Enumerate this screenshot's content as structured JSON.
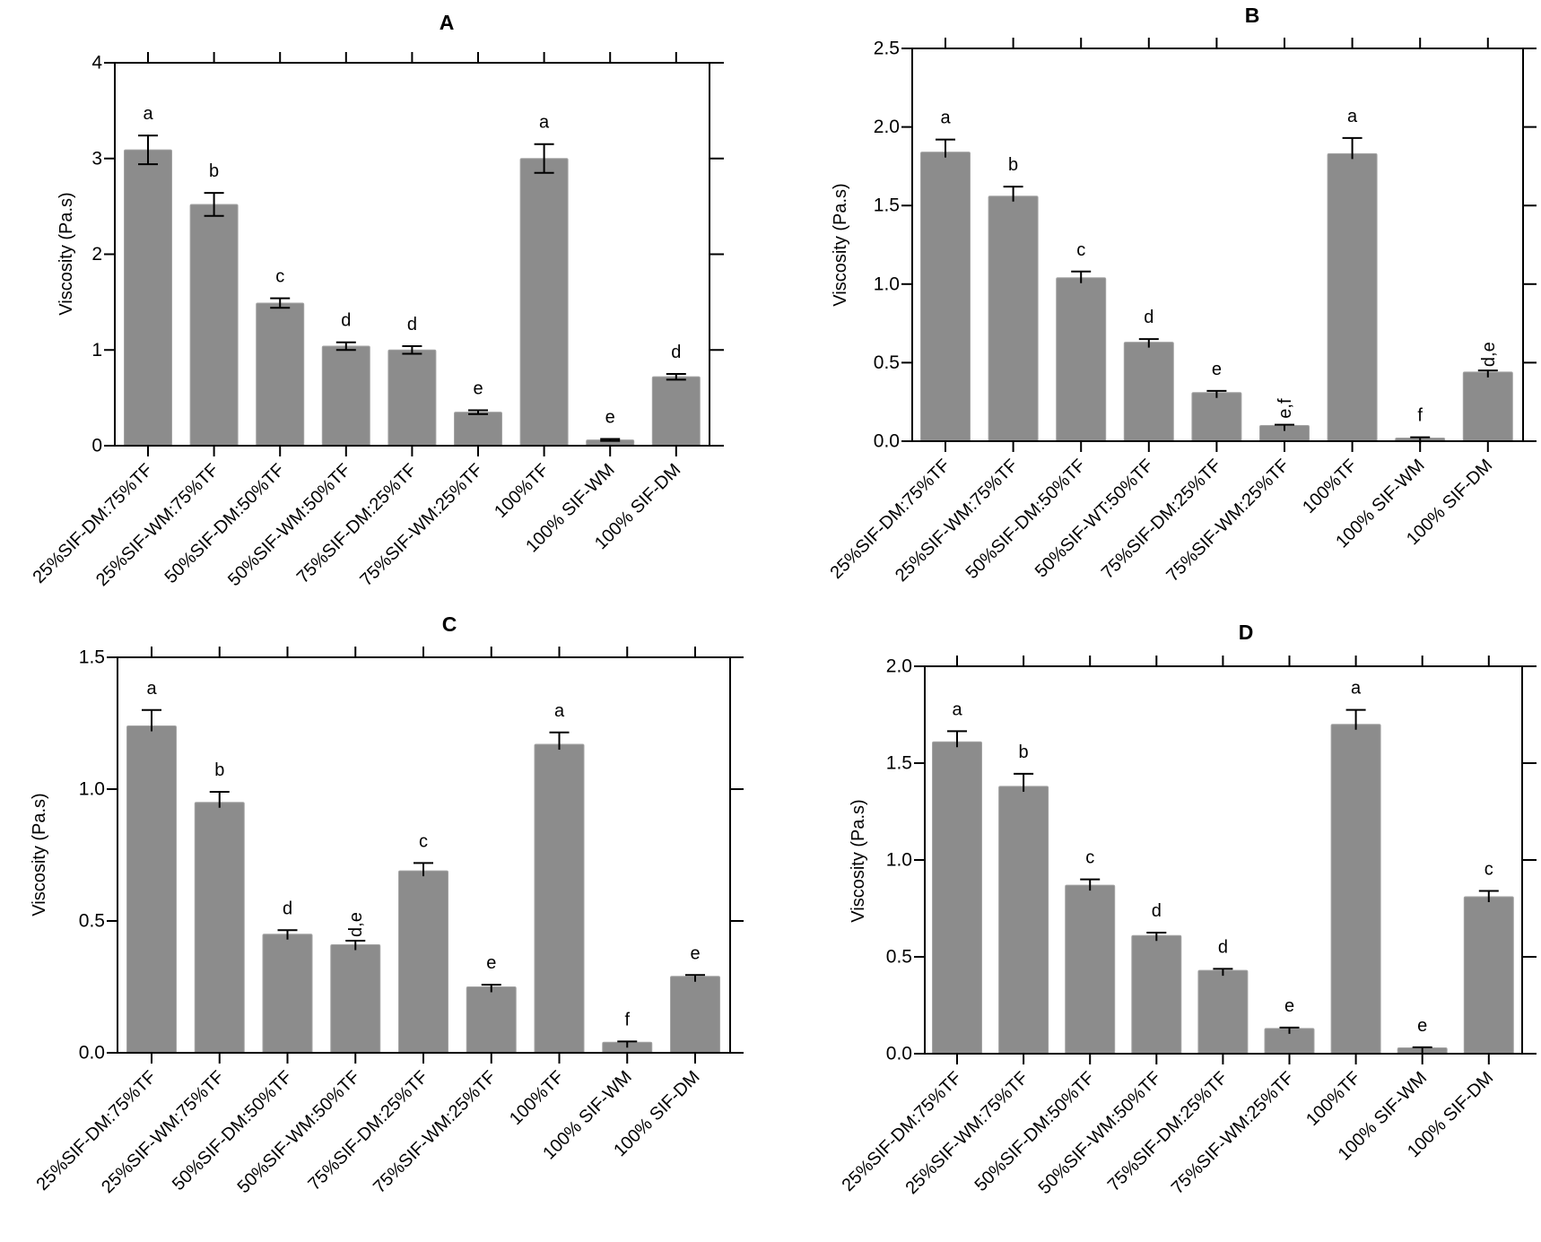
{
  "figure": {
    "bar_color": "#8c8c8c",
    "axis_color": "#000000"
  },
  "chart_data": [
    {
      "id": "A",
      "type": "bar",
      "title": "A",
      "xlabel": "",
      "ylabel": "Viscosity (Pa.s)",
      "ylim": [
        0,
        4
      ],
      "yticks": [
        0,
        1,
        2,
        3,
        4
      ],
      "ytick_labels": [
        "0",
        "1",
        "2",
        "3",
        "4"
      ],
      "error_style": "two-sided",
      "categories": [
        "25%SIF-DM:75%TF",
        "25%SIF-WM:75%TF",
        "50%SIF-DM:50%TF",
        "50%SIF-WM:50%TF",
        "75%SIF-DM:25%TF",
        "75%SIF-WM:25%TF",
        "100%TF",
        "100% SIF-WM",
        "100% SIF-DM"
      ],
      "values": [
        3.09,
        2.52,
        1.49,
        1.04,
        1.0,
        0.35,
        3.0,
        0.06,
        0.72
      ],
      "errors": [
        0.15,
        0.12,
        0.05,
        0.04,
        0.04,
        0.02,
        0.15,
        0.01,
        0.03
      ],
      "significance": [
        "a",
        "b",
        "c",
        "d",
        "d",
        "e",
        "a",
        "e",
        "d"
      ]
    },
    {
      "id": "B",
      "type": "bar",
      "title": "B",
      "xlabel": "",
      "ylabel": "Viscosity (Pa.s)",
      "ylim": [
        0,
        2.5
      ],
      "yticks": [
        0,
        0.5,
        1.0,
        1.5,
        2.0,
        2.5
      ],
      "ytick_labels": [
        "0.0",
        "0.5",
        "1.0",
        "1.5",
        "2.0",
        "2.5"
      ],
      "error_style": "upper",
      "categories": [
        "25%SIF-DM:75%TF",
        "25%SIF-WM:75%TF",
        "50%SIF-DM:50%TF",
        "50%SIF-WT:50%TF",
        "75%SIF-DM:25%TF",
        "75%SIF-WM:25%TF",
        "100%TF",
        "100% SIF-WM",
        "100% SIF-DM"
      ],
      "values": [
        1.84,
        1.56,
        1.04,
        0.63,
        0.31,
        0.1,
        1.83,
        0.02,
        0.44
      ],
      "errors": [
        0.08,
        0.06,
        0.04,
        0.02,
        0.01,
        0.005,
        0.1,
        0.005,
        0.01
      ],
      "significance": [
        "a",
        "b",
        "c",
        "d",
        "e",
        "e,f",
        "a",
        "f",
        "d,e"
      ]
    },
    {
      "id": "C",
      "type": "bar",
      "title": "C",
      "xlabel": "",
      "ylabel": "Viscosity (Pa.s)",
      "ylim": [
        0,
        1.5
      ],
      "yticks": [
        0,
        0.5,
        1.0,
        1.5
      ],
      "ytick_labels": [
        "0.0",
        "0.5",
        "1.0",
        "1.5"
      ],
      "error_style": "upper",
      "categories": [
        "25%SIF-DM:75%TF",
        "25%SIF-WM:75%TF",
        "50%SIF-DM:50%TF",
        "50%SIF-WM:50%TF",
        "75%SIF-DM:25%TF",
        "75%SIF-WM:25%TF",
        "100%TF",
        "100% SIF-WM",
        "100% SIF-DM"
      ],
      "values": [
        1.24,
        0.95,
        0.45,
        0.41,
        0.69,
        0.25,
        1.17,
        0.04,
        0.29
      ],
      "errors": [
        0.06,
        0.04,
        0.015,
        0.015,
        0.03,
        0.008,
        0.045,
        0.003,
        0.005
      ],
      "significance": [
        "a",
        "b",
        "d",
        "d,e",
        "c",
        "e",
        "a",
        "f",
        "e"
      ]
    },
    {
      "id": "D",
      "type": "bar",
      "title": "D",
      "xlabel": "",
      "ylabel": "Viscosity (Pa.s)",
      "ylim": [
        0,
        2.0
      ],
      "yticks": [
        0,
        0.5,
        1.0,
        1.5,
        2.0
      ],
      "ytick_labels": [
        "0.0",
        "0.5",
        "1.0",
        "1.5",
        "2.0"
      ],
      "error_style": "upper",
      "categories": [
        "25%SIF-DM:75%TF",
        "25%SIF-WM:75%TF",
        "50%SIF-DM:50%TF",
        "50%SIF-WM:50%TF",
        "75%SIF-DM:25%TF",
        "75%SIF-WM:25%TF",
        "100%TF",
        "100% SIF-WM",
        "100% SIF-DM"
      ],
      "values": [
        1.61,
        1.38,
        0.87,
        0.61,
        0.43,
        0.13,
        1.7,
        0.03,
        0.81
      ],
      "errors": [
        0.055,
        0.065,
        0.03,
        0.015,
        0.008,
        0.005,
        0.075,
        0.003,
        0.03
      ],
      "significance": [
        "a",
        "b",
        "c",
        "d",
        "d",
        "e",
        "a",
        "e",
        "c"
      ]
    }
  ]
}
